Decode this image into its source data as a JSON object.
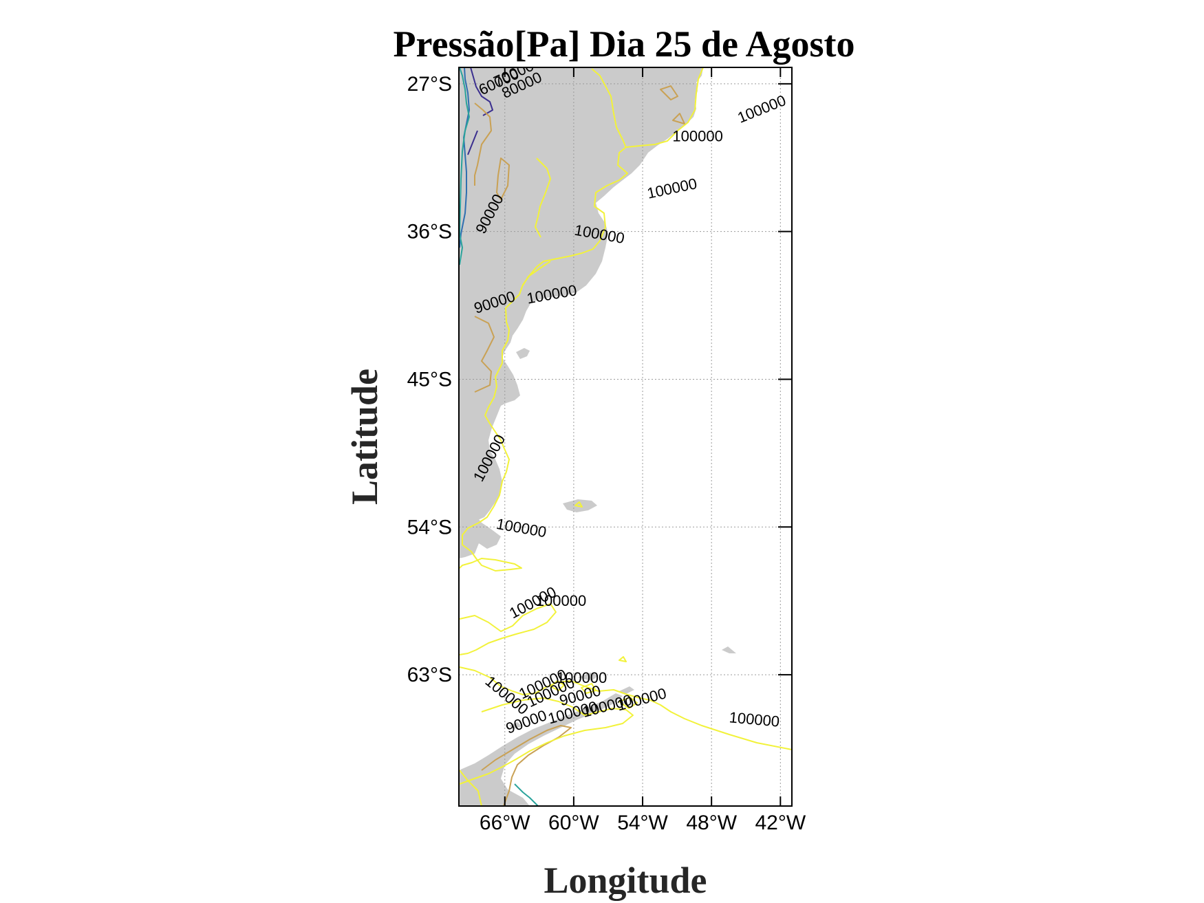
{
  "title": "Pressão[Pa] Dia 25 de Agosto",
  "xlabel": "Longitude",
  "ylabel": "Latitude",
  "map": {
    "lon_range": [
      -70,
      -41
    ],
    "lat_range": [
      -71,
      -26
    ],
    "x_ticks": [
      {
        "value": -66,
        "label": "66°W"
      },
      {
        "value": -60,
        "label": "60°W"
      },
      {
        "value": -54,
        "label": "54°W"
      },
      {
        "value": -48,
        "label": "48°W"
      },
      {
        "value": -42,
        "label": "42°W"
      }
    ],
    "y_ticks": [
      {
        "value": -27,
        "label": "27°S"
      },
      {
        "value": -36,
        "label": "36°S"
      },
      {
        "value": -45,
        "label": "45°S"
      },
      {
        "value": -54,
        "label": "54°S"
      },
      {
        "value": -63,
        "label": "63°S"
      }
    ],
    "land_color": "#cbcbcb",
    "grid": true
  },
  "contours": {
    "levels": [
      60000,
      70000,
      80000,
      90000,
      100000
    ],
    "colors": {
      "60000": "#3b2f8f",
      "70000": "#2f6fb0",
      "80000": "#2aa39b",
      "90000": "#c9a154",
      "100000": "#f2f23a"
    },
    "labels": [
      {
        "text": "60000",
        "lon": -68.0,
        "lat": -27.7,
        "angle": -25
      },
      {
        "text": "70000",
        "lon": -66.7,
        "lat": -27.2,
        "angle": -25
      },
      {
        "text": "80000",
        "lon": -66.0,
        "lat": -27.9,
        "angle": -25
      },
      {
        "text": "100000",
        "lon": -45.5,
        "lat": -29.4,
        "angle": -22
      },
      {
        "text": "100000",
        "lon": -51.4,
        "lat": -30.5,
        "angle": 0
      },
      {
        "text": "100000",
        "lon": -53.5,
        "lat": -34.0,
        "angle": -12
      },
      {
        "text": "100000",
        "lon": -60.0,
        "lat": -36.2,
        "angle": 10
      },
      {
        "text": "90000",
        "lon": -67.8,
        "lat": -36.2,
        "angle": -62
      },
      {
        "text": "100000",
        "lon": -64.0,
        "lat": -40.4,
        "angle": -10
      },
      {
        "text": "90000",
        "lon": -68.5,
        "lat": -41.0,
        "angle": -18
      },
      {
        "text": "100000",
        "lon": -68.0,
        "lat": -51.3,
        "angle": -62
      },
      {
        "text": "100000",
        "lon": -66.8,
        "lat": -54.1,
        "angle": 10
      },
      {
        "text": "100000",
        "lon": -63.3,
        "lat": -58.8,
        "angle": 0
      },
      {
        "text": "100000",
        "lon": -65.3,
        "lat": -59.6,
        "angle": -28
      },
      {
        "text": "100000",
        "lon": -67.8,
        "lat": -63.5,
        "angle": 40
      },
      {
        "text": "100000",
        "lon": -61.5,
        "lat": -63.5,
        "angle": 0
      },
      {
        "text": "100000",
        "lon": -64.5,
        "lat": -64.5,
        "angle": -25
      },
      {
        "text": "100000",
        "lon": -63.8,
        "lat": -65.0,
        "angle": -25
      },
      {
        "text": "90000",
        "lon": -61.1,
        "lat": -64.9,
        "angle": -15
      },
      {
        "text": "100000",
        "lon": -56.1,
        "lat": -65.2,
        "angle": -15
      },
      {
        "text": "100000",
        "lon": -59.1,
        "lat": -65.6,
        "angle": -15
      },
      {
        "text": "100000",
        "lon": -62.1,
        "lat": -66.0,
        "angle": -15
      },
      {
        "text": "90000",
        "lon": -65.7,
        "lat": -66.6,
        "angle": -20
      },
      {
        "text": "100000",
        "lon": -46.5,
        "lat": -65.9,
        "angle": 5
      }
    ]
  }
}
